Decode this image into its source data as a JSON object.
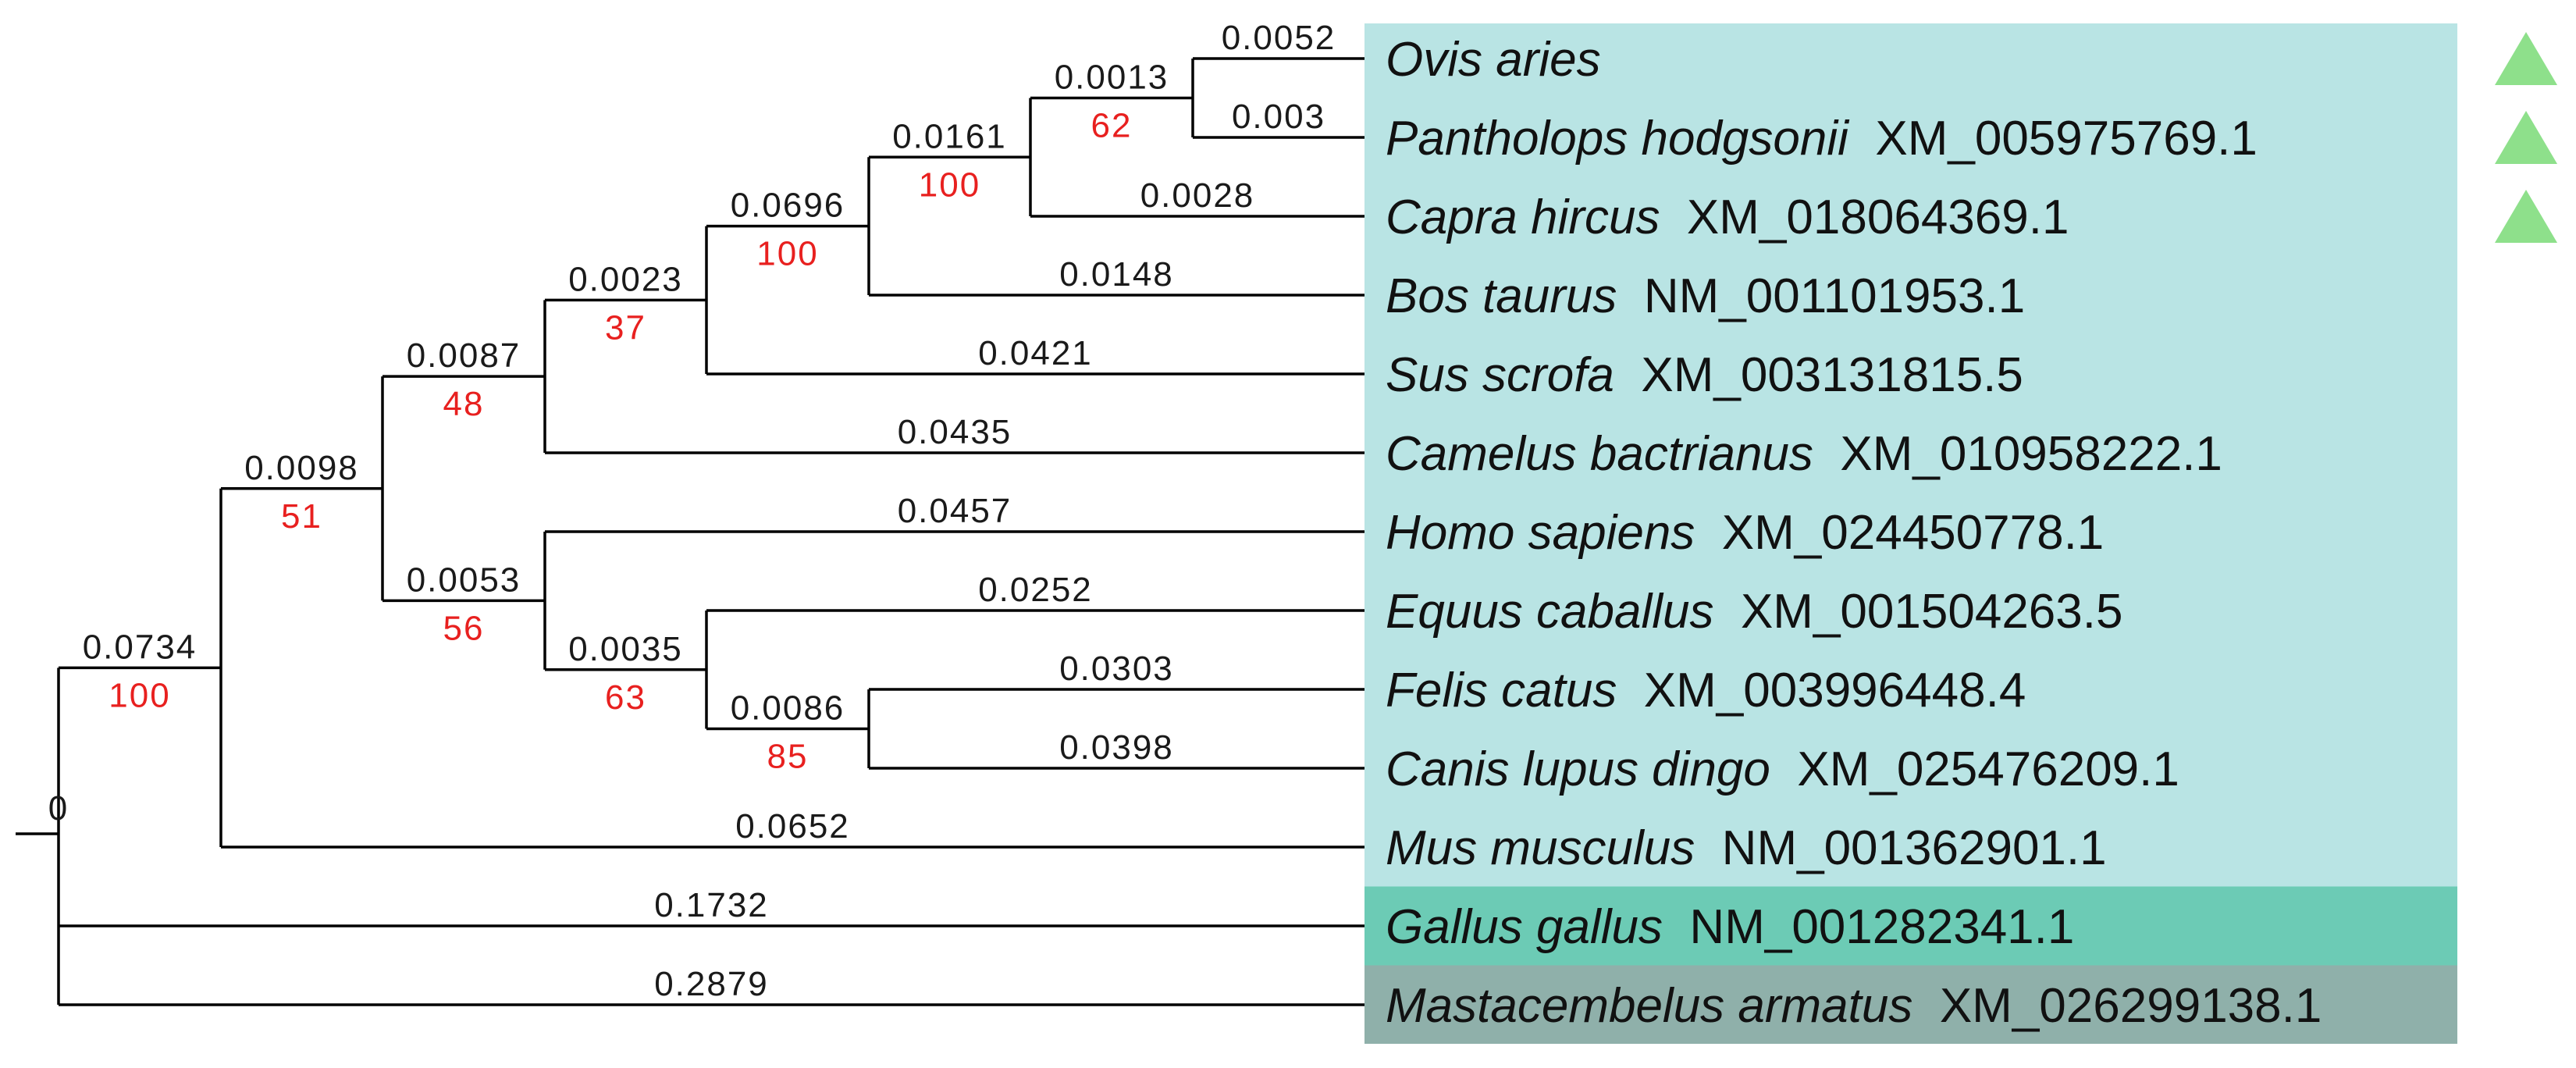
{
  "colors": {
    "group_mammals": "#b9e4e4",
    "group_birds": "#6ccbb5",
    "group_fish": "#8fb0aa",
    "branch_line": "#000000",
    "support_text": "#e8201f",
    "marker": "#8ee08b"
  },
  "marker_icon": "triangle-icon",
  "root_support": "0",
  "taxa": [
    {
      "species": "Ovis aries",
      "accession": "",
      "group": "mammals",
      "marker": true
    },
    {
      "species": "Pantholops hodgsonii",
      "accession": "XM_005975769.1",
      "group": "mammals",
      "marker": true
    },
    {
      "species": "Capra hircus",
      "accession": "XM_018064369.1",
      "group": "mammals",
      "marker": true
    },
    {
      "species": "Bos taurus",
      "accession": "NM_001101953.1",
      "group": "mammals",
      "marker": false
    },
    {
      "species": "Sus scrofa",
      "accession": "XM_003131815.5",
      "group": "mammals",
      "marker": false
    },
    {
      "species": "Camelus bactrianus",
      "accession": "XM_010958222.1",
      "group": "mammals",
      "marker": false
    },
    {
      "species": "Homo sapiens",
      "accession": "XM_024450778.1",
      "group": "mammals",
      "marker": false
    },
    {
      "species": "Equus caballus",
      "accession": "XM_001504263.5",
      "group": "mammals",
      "marker": false
    },
    {
      "species": "Felis catus",
      "accession": "XM_003996448.4",
      "group": "mammals",
      "marker": false
    },
    {
      "species": "Canis lupus dingo",
      "accession": "XM_025476209.1",
      "group": "mammals",
      "marker": false
    },
    {
      "species": "Mus musculus",
      "accession": "NM_001362901.1",
      "group": "mammals",
      "marker": false
    },
    {
      "species": "Gallus gallus",
      "accession": "NM_001282341.1",
      "group": "birds",
      "marker": false
    },
    {
      "species": "Mastacembelus armatus",
      "accession": "XM_026299138.1",
      "group": "fish",
      "marker": false
    }
  ],
  "tree": {
    "children": [
      {
        "length": "0.0734",
        "support": "100",
        "children": [
          {
            "length": "0.0098",
            "support": "51",
            "children": [
              {
                "length": "0.0087",
                "support": "48",
                "children": [
                  {
                    "length": "0.0023",
                    "support": "37",
                    "children": [
                      {
                        "length": "0.0696",
                        "support": "100",
                        "children": [
                          {
                            "length": "0.0161",
                            "support": "100",
                            "children": [
                              {
                                "length": "0.0013",
                                "support": "62",
                                "children": [
                                  {
                                    "taxon": 0,
                                    "length": "0.0052"
                                  },
                                  {
                                    "taxon": 1,
                                    "length": "0.003"
                                  }
                                ]
                              },
                              {
                                "taxon": 2,
                                "length": "0.0028"
                              }
                            ]
                          },
                          {
                            "taxon": 3,
                            "length": "0.0148"
                          }
                        ]
                      },
                      {
                        "taxon": 4,
                        "length": "0.0421"
                      }
                    ]
                  },
                  {
                    "taxon": 5,
                    "length": "0.0435"
                  }
                ]
              },
              {
                "length": "0.0053",
                "support": "56",
                "children": [
                  {
                    "taxon": 6,
                    "length": "0.0457"
                  },
                  {
                    "length": "0.0035",
                    "support": "63",
                    "children": [
                      {
                        "taxon": 7,
                        "length": "0.0252"
                      },
                      {
                        "length": "0.0086",
                        "support": "85",
                        "children": [
                          {
                            "taxon": 8,
                            "length": "0.0303"
                          },
                          {
                            "taxon": 9,
                            "length": "0.0398"
                          }
                        ]
                      }
                    ]
                  }
                ]
              }
            ]
          },
          {
            "taxon": 10,
            "length": "0.0652"
          }
        ]
      },
      {
        "taxon": 11,
        "length": "0.1732"
      },
      {
        "taxon": 12,
        "length": "0.2879"
      }
    ]
  }
}
